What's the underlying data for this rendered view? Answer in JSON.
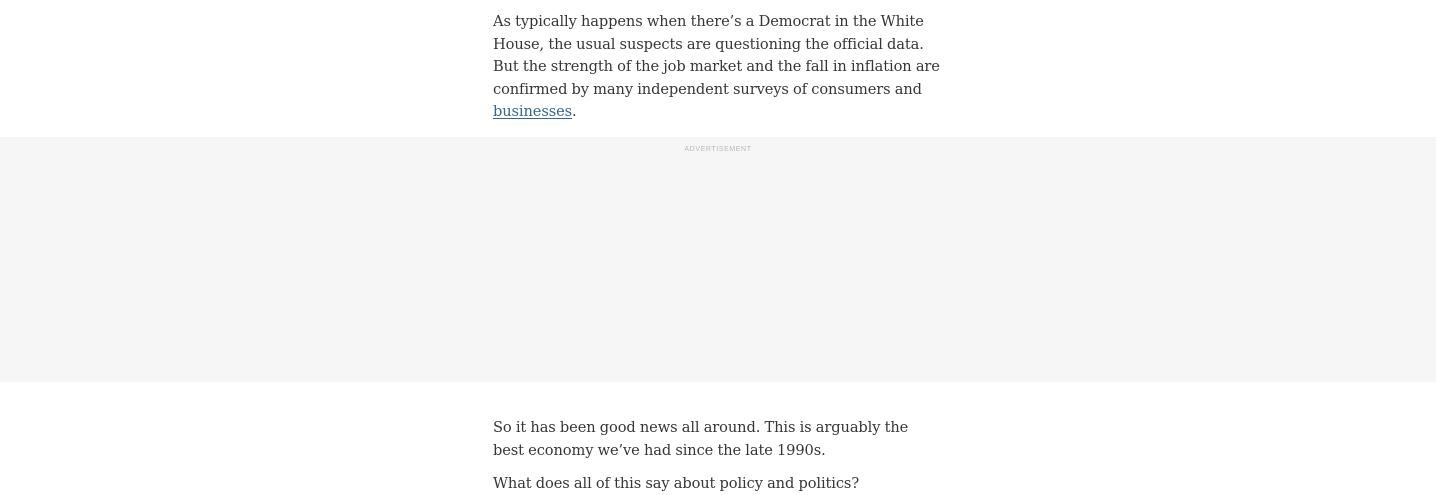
{
  "article": {
    "paragraph_1": {
      "text_before_link": "As typically happens when there’s a Democrat in the White House, the usual suspects are questioning the official data. But the strength of the job market and the fall in inflation are confirmed by many independent surveys of consumers and ",
      "link_text": "businesses",
      "text_after_link": "."
    },
    "advertisement_label": "ADVERTISEMENT",
    "paragraph_2": "So it has been good news all around. This is arguably the best economy we’ve had since the late 1990s.",
    "paragraph_3": "What does all of this say about policy and politics?"
  },
  "colors": {
    "body_text": "#363636",
    "link": "#326891",
    "ad_background": "#f6f6f6",
    "ad_label": "#b8b8b8"
  }
}
